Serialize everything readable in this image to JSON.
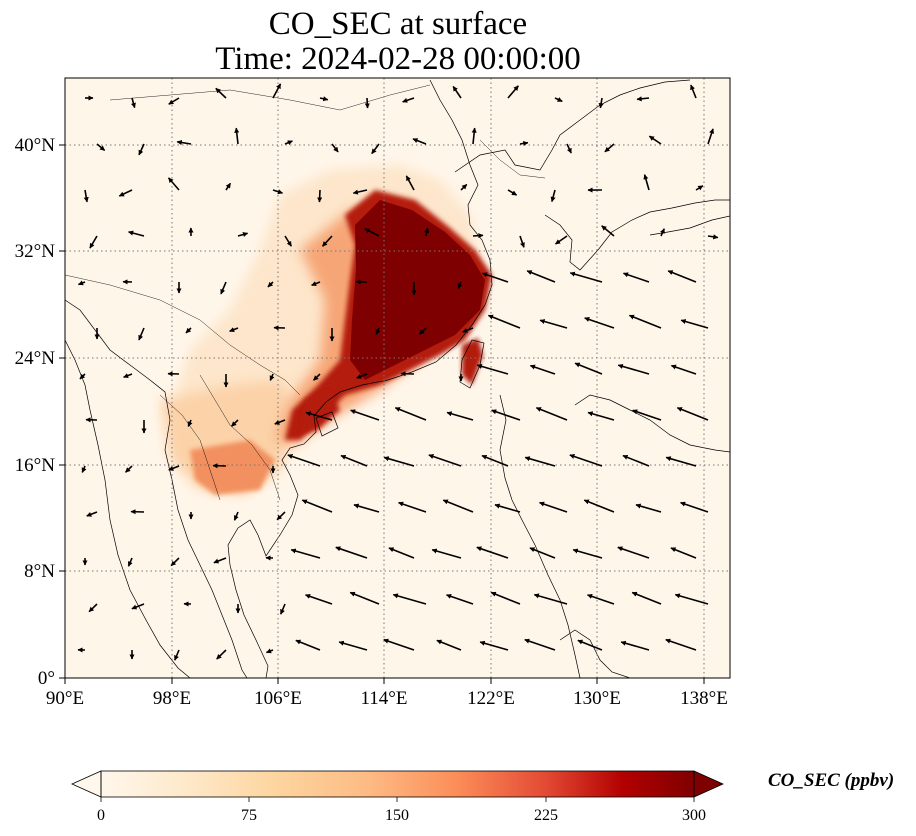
{
  "title": {
    "line1": "CO_SEC at surface",
    "line2": "Time: 2024-02-28 00:00:00"
  },
  "axes": {
    "x_ticks": [
      "90°E",
      "98°E",
      "106°E",
      "114°E",
      "122°E",
      "130°E",
      "138°E"
    ],
    "y_ticks": [
      "0°",
      "8°N",
      "16°N",
      "24°N",
      "32°N",
      "40°N"
    ],
    "lon_range": [
      90,
      140
    ],
    "lat_range": [
      0,
      45
    ],
    "gridlines": "dotted"
  },
  "colorbar": {
    "label": "CO_SEC (ppbv)",
    "ticks": [
      "0",
      "75",
      "150",
      "225",
      "300"
    ],
    "range": [
      0,
      300
    ],
    "colormap": "OrRd",
    "extend": "both"
  },
  "colors": {
    "background_low": "#fff6ea",
    "high": "#7f0000",
    "coastline": "#000000"
  }
}
